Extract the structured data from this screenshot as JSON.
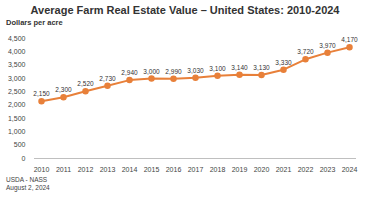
{
  "chart_data": {
    "type": "line",
    "title": "Average Farm Real Estate Value – United States: 2010-2024",
    "y_label": "Dollars per acre",
    "categories": [
      "2010",
      "2011",
      "2012",
      "2013",
      "2014",
      "2015",
      "2016",
      "2017",
      "2018",
      "2019",
      "2020",
      "2021",
      "2022",
      "2023",
      "2024"
    ],
    "values": [
      2150,
      2300,
      2520,
      2730,
      2940,
      3000,
      2990,
      3030,
      3100,
      3140,
      3130,
      3330,
      3720,
      3970,
      4170
    ],
    "value_labels": [
      "2,150",
      "2,300",
      "2,520",
      "2,730",
      "2,940",
      "3,000",
      "2,990",
      "3,030",
      "3,100",
      "3,140",
      "3,130",
      "3,330",
      "3,720",
      "3,970",
      "4,170"
    ],
    "color": "#e8803a",
    "marker": "circle",
    "data_labels": true,
    "grid": false,
    "ylim": [
      0,
      4500
    ],
    "yticks": [
      0,
      500,
      {
        "value": 1000,
        "label": "1,000"
      },
      {
        "value": 1500,
        "label": "1,500"
      },
      {
        "value": 2000,
        "label": "2,000"
      },
      {
        "value": 2500,
        "label": "2,500"
      },
      {
        "value": 3000,
        "label": "3,000"
      },
      {
        "value": 3500,
        "label": "3,500"
      },
      {
        "value": 4000,
        "label": "4,000"
      },
      {
        "value": 4500,
        "label": "4,500"
      }
    ],
    "annotations": [
      "USDA - NASS",
      "August 2, 2024"
    ]
  }
}
